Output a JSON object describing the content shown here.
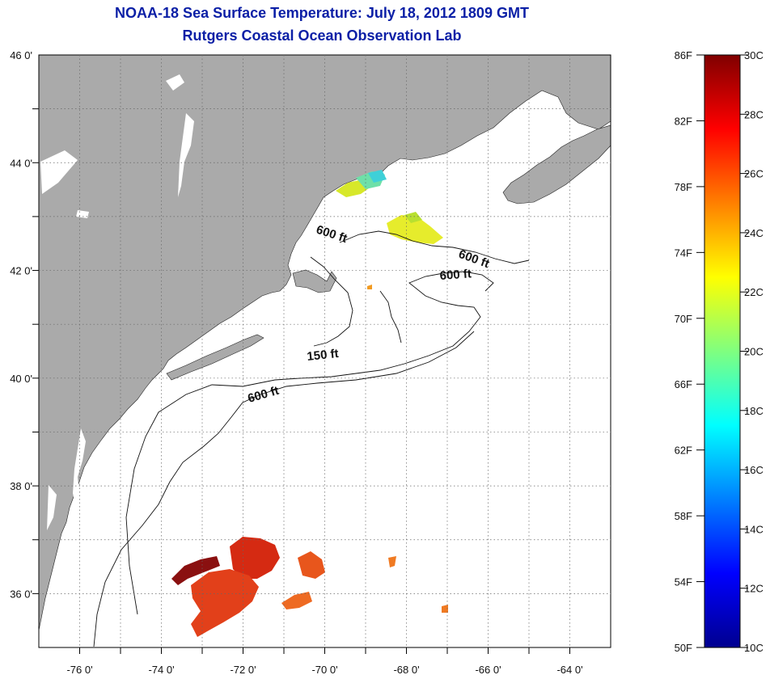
{
  "title": "NOAA-18 Sea Surface Temperature:  July 18, 2012 1809 GMT",
  "subtitle": "Rutgers Coastal Ocean Observation Lab",
  "colors": {
    "title": "#0b1fa6",
    "land": "#aaaaaa",
    "water": "#ffffff",
    "grid": "#555555"
  },
  "map": {
    "lon_range": [
      -77,
      -63
    ],
    "lat_range": [
      35,
      46
    ],
    "lon_ticks": [
      "-76 0'",
      "-74 0'",
      "-72 0'",
      "-70 0'",
      "-68 0'",
      "-66 0'",
      "-64 0'"
    ],
    "lat_ticks": [
      "46 0'",
      "44 0'",
      "42 0'",
      "40 0'",
      "38 0'",
      "36 0'"
    ],
    "grid": "dotted",
    "contour_labels": [
      "600 ft",
      "600 ft",
      "600 ft",
      "150 ft",
      "600 ft"
    ]
  },
  "colorbar": {
    "min_c": 10,
    "max_c": 30,
    "fahrenheit_labels": [
      "86F",
      "82F",
      "78F",
      "74F",
      "70F",
      "66F",
      "62F",
      "58F",
      "54F",
      "50F"
    ],
    "celsius_labels": [
      "30C",
      "28C",
      "26C",
      "24C",
      "22C",
      "20C",
      "18C",
      "16C",
      "14C",
      "12C",
      "10C"
    ]
  }
}
